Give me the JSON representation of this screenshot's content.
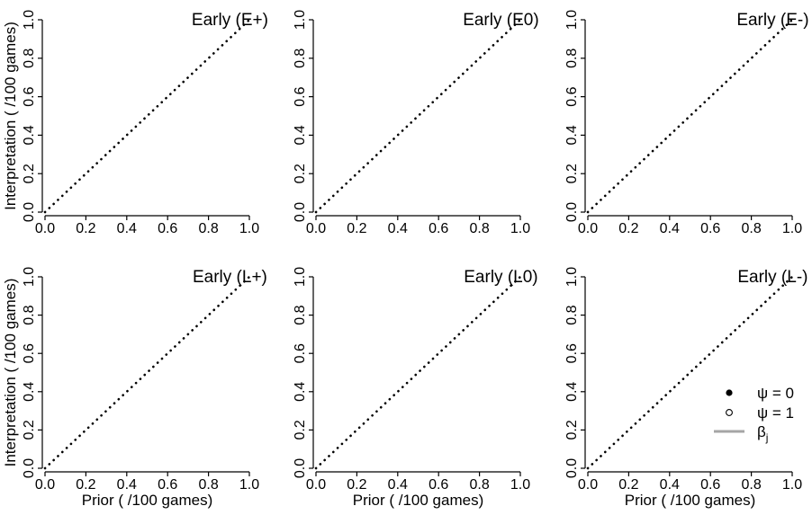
{
  "chart_data": [
    {
      "type": "line",
      "title": "Early (E+)",
      "xlabel": "",
      "ylabel": "Interpretation ( /100 games)",
      "xlim": [
        0,
        1
      ],
      "ylim": [
        0,
        1
      ],
      "xticks": [
        "0.0",
        "0.2",
        "0.4",
        "0.6",
        "0.8",
        "1.0"
      ],
      "yticks": [
        "0.0",
        "0.2",
        "0.4",
        "0.6",
        "0.8",
        "1.0"
      ],
      "series": [
        {
          "style": "dotted",
          "x": [
            0,
            1
          ],
          "y": [
            0,
            1
          ]
        }
      ]
    },
    {
      "type": "line",
      "title": "Early (E0)",
      "xlabel": "",
      "ylabel": "",
      "xlim": [
        0,
        1
      ],
      "ylim": [
        0,
        1
      ],
      "xticks": [
        "0.0",
        "0.2",
        "0.4",
        "0.6",
        "0.8",
        "1.0"
      ],
      "yticks": [
        "0.0",
        "0.2",
        "0.4",
        "0.6",
        "0.8",
        "1.0"
      ],
      "series": [
        {
          "style": "dotted",
          "x": [
            0,
            1
          ],
          "y": [
            0,
            1
          ]
        }
      ]
    },
    {
      "type": "line",
      "title": "Early (E-)",
      "xlabel": "",
      "ylabel": "",
      "xlim": [
        0,
        1
      ],
      "ylim": [
        0,
        1
      ],
      "xticks": [
        "0.0",
        "0.2",
        "0.4",
        "0.6",
        "0.8",
        "1.0"
      ],
      "yticks": [
        "0.0",
        "0.2",
        "0.4",
        "0.6",
        "0.8",
        "1.0"
      ],
      "series": [
        {
          "style": "dotted",
          "x": [
            0,
            1
          ],
          "y": [
            0,
            1
          ]
        }
      ]
    },
    {
      "type": "line",
      "title": "Early (L+)",
      "xlabel": "Prior ( /100 games)",
      "ylabel": "Interpretation ( /100 games)",
      "xlim": [
        0,
        1
      ],
      "ylim": [
        0,
        1
      ],
      "xticks": [
        "0.0",
        "0.2",
        "0.4",
        "0.6",
        "0.8",
        "1.0"
      ],
      "yticks": [
        "0.0",
        "0.2",
        "0.4",
        "0.6",
        "0.8",
        "1.0"
      ],
      "series": [
        {
          "style": "dotted",
          "x": [
            0,
            1
          ],
          "y": [
            0,
            1
          ]
        }
      ]
    },
    {
      "type": "line",
      "title": "Early (L0)",
      "xlabel": "Prior ( /100 games)",
      "ylabel": "",
      "xlim": [
        0,
        1
      ],
      "ylim": [
        0,
        1
      ],
      "xticks": [
        "0.0",
        "0.2",
        "0.4",
        "0.6",
        "0.8",
        "1.0"
      ],
      "yticks": [
        "0.0",
        "0.2",
        "0.4",
        "0.6",
        "0.8",
        "1.0"
      ],
      "series": [
        {
          "style": "dotted",
          "x": [
            0,
            1
          ],
          "y": [
            0,
            1
          ]
        }
      ]
    },
    {
      "type": "line",
      "title": "Early (L-)",
      "xlabel": "Prior ( /100 games)",
      "ylabel": "",
      "xlim": [
        0,
        1
      ],
      "ylim": [
        0,
        1
      ],
      "xticks": [
        "0.0",
        "0.2",
        "0.4",
        "0.6",
        "0.8",
        "1.0"
      ],
      "yticks": [
        "0.0",
        "0.2",
        "0.4",
        "0.6",
        "0.8",
        "1.0"
      ],
      "series": [
        {
          "style": "dotted",
          "x": [
            0,
            1
          ],
          "y": [
            0,
            1
          ]
        }
      ],
      "legend": {
        "placement": "bottom-right",
        "entries": [
          {
            "symbol": "filled-circle",
            "label": "ψ = 0"
          },
          {
            "symbol": "open-circle",
            "label": "ψ = 1"
          },
          {
            "symbol": "line",
            "color": "#a6a6a6",
            "label": "β",
            "subscript": "j"
          }
        ]
      }
    }
  ],
  "colors": {
    "axis": "#000000",
    "reference_line": "#000000",
    "beta_line": "#a6a6a6"
  }
}
